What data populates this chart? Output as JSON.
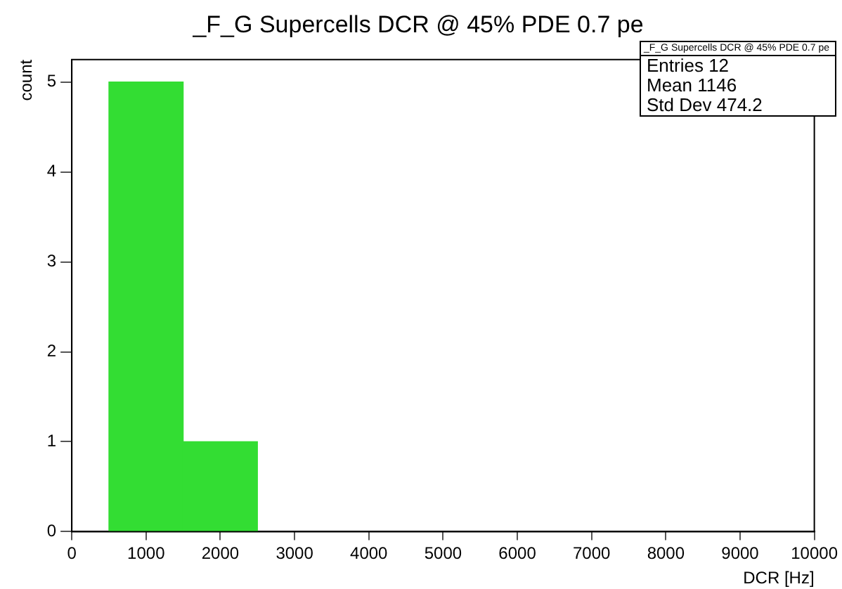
{
  "chart_data": {
    "type": "histogram",
    "title": "_F_G Supercells DCR @ 45% PDE 0.7 pe",
    "xlabel": "DCR [Hz]",
    "ylabel": "count",
    "bins": [
      500,
      1500,
      2500
    ],
    "values": [
      5,
      1
    ],
    "color": "#33dd33",
    "xlim": [
      0,
      10000
    ],
    "xticks": [
      0,
      1000,
      2000,
      3000,
      4000,
      5000,
      6000,
      7000,
      8000,
      9000,
      10000
    ],
    "ylim": [
      0,
      5.25
    ],
    "yticks": [
      0,
      1,
      2,
      3,
      4,
      5
    ],
    "grid": false,
    "legend": false,
    "annotations": [
      "_F_G Supercells DCR @ 45% PDE 0.7 pe",
      "Entries 12",
      "Mean 1146",
      "Std Dev 474.2"
    ]
  }
}
